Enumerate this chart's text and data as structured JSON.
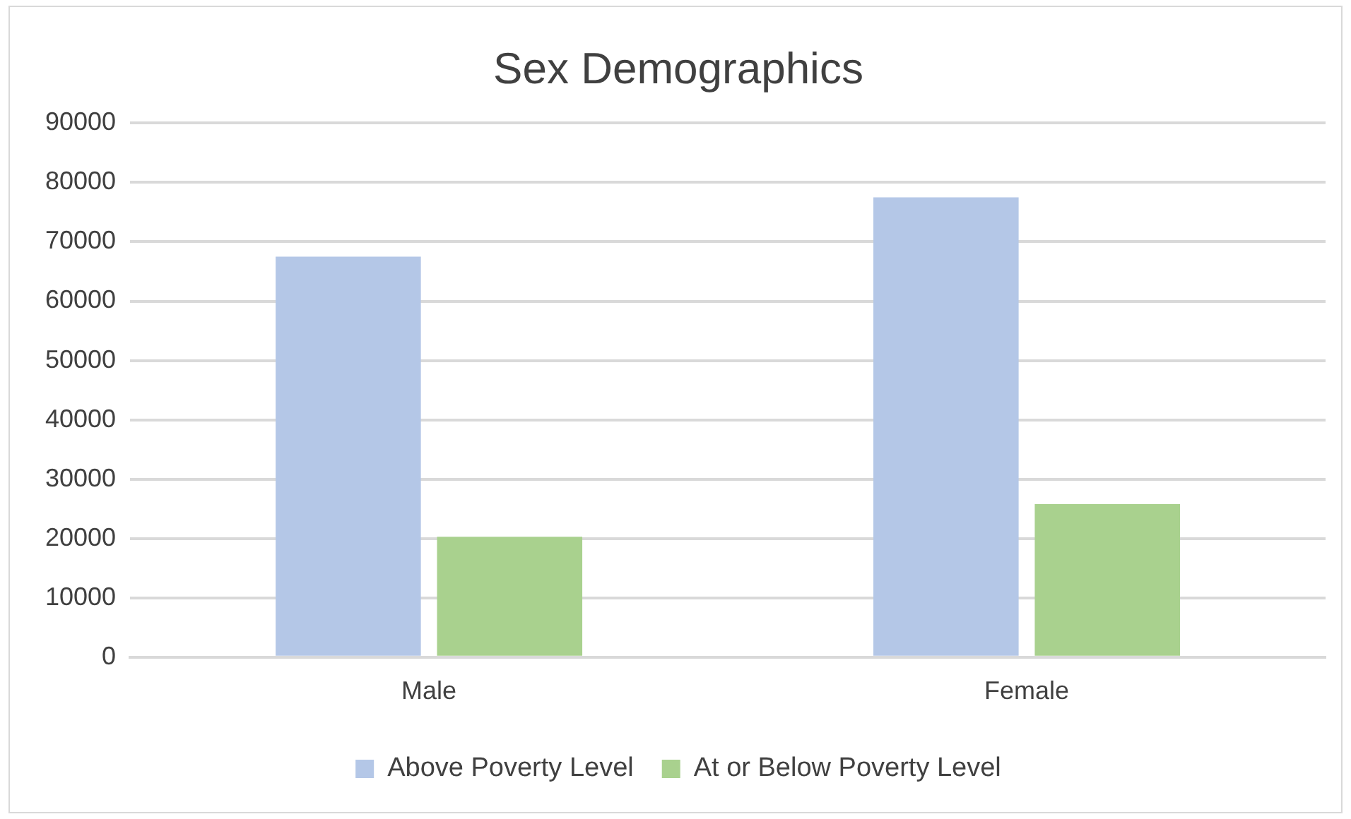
{
  "chart_data": {
    "type": "bar",
    "title": "Sex Demographics",
    "categories": [
      "Male",
      "Female"
    ],
    "series": [
      {
        "name": "Above Poverty Level",
        "color": "#b4c7e7",
        "values": [
          67500,
          77500
        ]
      },
      {
        "name": "At or Below Poverty Level",
        "color": "#a9d18e",
        "values": [
          20300,
          25800
        ]
      }
    ],
    "ylim": [
      0,
      90000
    ],
    "yticks": [
      0,
      10000,
      20000,
      30000,
      40000,
      50000,
      60000,
      70000,
      80000,
      90000
    ],
    "grid": "y",
    "legend": "bottom"
  }
}
